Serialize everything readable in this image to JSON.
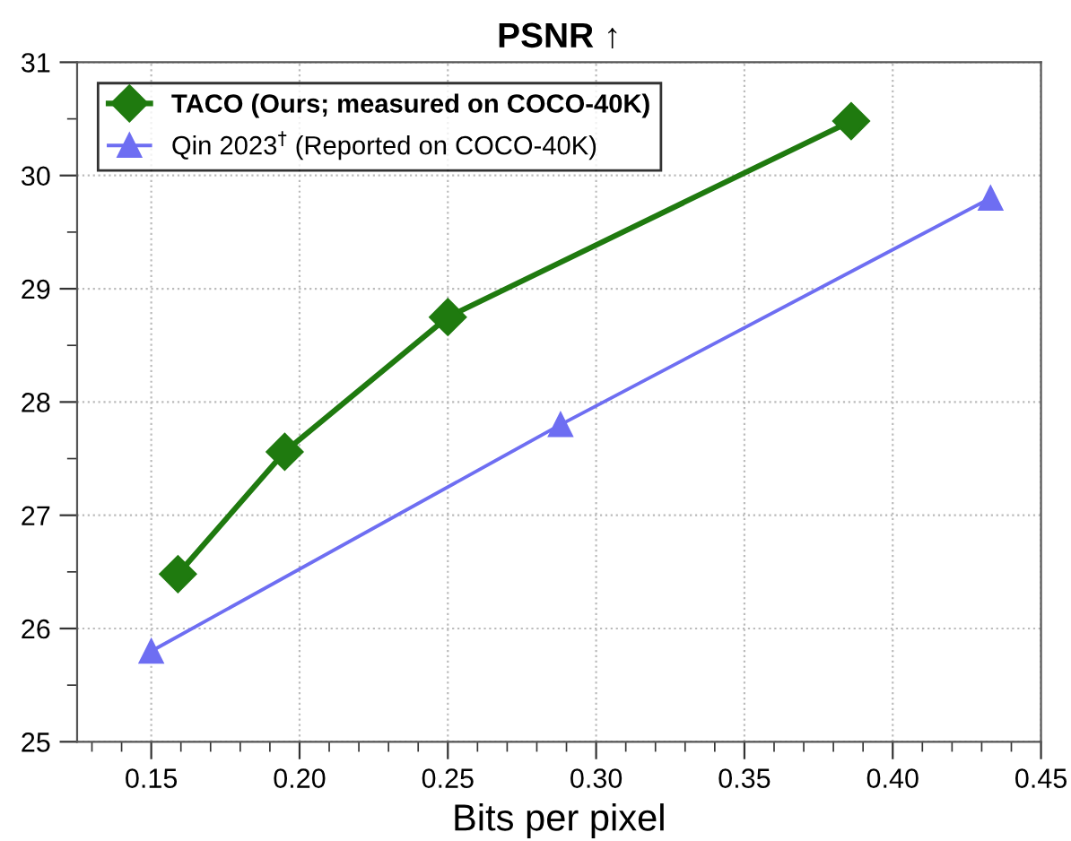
{
  "chart_data": {
    "type": "line",
    "title": "PSNR ↑",
    "xlabel": "Bits per pixel",
    "xlim": [
      0.125,
      0.45
    ],
    "xticks": [
      {
        "value": 0.15,
        "label": "0.15"
      },
      {
        "value": 0.2,
        "label": "0.20"
      },
      {
        "value": 0.25,
        "label": "0.25"
      },
      {
        "value": 0.3,
        "label": "0.30"
      },
      {
        "value": 0.35,
        "label": "0.35"
      },
      {
        "value": 0.4,
        "label": "0.40"
      },
      {
        "value": 0.45,
        "label": "0.45"
      }
    ],
    "ylim": [
      25,
      31
    ],
    "yticks": [
      25,
      26,
      27,
      28,
      29,
      30,
      31
    ],
    "grid": true,
    "legend": "top left",
    "line_style": "solid",
    "series": [
      {
        "name": "TACO (Ours; measured on COCO-40K)",
        "color": "#1f7a0f",
        "marker": "diamond",
        "x": [
          0.159,
          0.195,
          0.25,
          0.386
        ],
        "values": [
          26.48,
          27.56,
          28.75,
          30.48
        ]
      },
      {
        "name": "Qin 2023$^{†}$ (Reported on COCO-40K)",
        "color": "#6e6ef2",
        "marker": "triangle",
        "x": [
          0.15,
          0.288,
          0.433
        ],
        "values": [
          25.8,
          27.8,
          29.8
        ]
      }
    ]
  }
}
